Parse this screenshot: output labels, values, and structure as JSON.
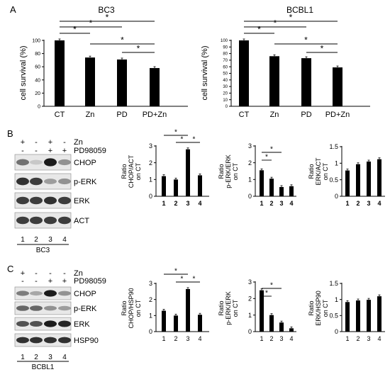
{
  "panels": {
    "A": "A",
    "B": "B",
    "C": "C"
  },
  "chart_data": [
    {
      "id": "a-bc3",
      "type": "bar",
      "title": "BC3",
      "ylabel": "cell survival (%)",
      "categories": [
        "CT",
        "Zn",
        "PD",
        "PD+Zn"
      ],
      "values": [
        100,
        74,
        71,
        58
      ],
      "ylim": [
        0,
        100
      ],
      "yticks": [
        "0",
        "20",
        "40",
        "60",
        "80",
        "100"
      ],
      "sig": [
        "*",
        "*",
        "*",
        "*",
        "*"
      ]
    },
    {
      "id": "a-bcbl1",
      "type": "bar",
      "title": "BCBL1",
      "ylabel": "cell survival (%)",
      "categories": [
        "CT",
        "Zn",
        "PD",
        "PD+Zn"
      ],
      "values": [
        100,
        76,
        73,
        59
      ],
      "ylim": [
        0,
        100
      ],
      "yticks": [
        "0",
        "10",
        "20",
        "30",
        "40",
        "50",
        "60",
        "70",
        "80",
        "90",
        "100"
      ],
      "sig": [
        "*",
        "*",
        "*",
        "*",
        "*"
      ]
    },
    {
      "id": "b-chop",
      "type": "bar",
      "ylabel": [
        "Ratio",
        "CHOP/ACT",
        "on CT"
      ],
      "categories": [
        "1",
        "2",
        "3",
        "4"
      ],
      "values": [
        1.2,
        1.0,
        2.8,
        1.25
      ],
      "ylim": [
        0,
        3
      ],
      "yticks": [
        "0",
        "1",
        "2",
        "3"
      ],
      "sig": [
        "*",
        "*",
        "*"
      ]
    },
    {
      "id": "b-perk",
      "type": "bar",
      "ylabel": [
        "Ratio",
        "p-ERK/ERK",
        "on CT"
      ],
      "categories": [
        "1",
        "2",
        "3",
        "4"
      ],
      "values": [
        1.55,
        1.05,
        0.55,
        0.6
      ],
      "ylim": [
        0,
        3
      ],
      "yticks": [
        "0",
        "1",
        "2",
        "3"
      ],
      "sig": [
        "*",
        "*"
      ]
    },
    {
      "id": "b-erk",
      "type": "bar",
      "ylabel": [
        "Ratio",
        "ERK/ACT",
        "on CT"
      ],
      "categories": [
        "1",
        "2",
        "3",
        "4"
      ],
      "values": [
        0.78,
        0.97,
        1.05,
        1.12
      ],
      "ylim": [
        0,
        1.5
      ],
      "yticks": [
        "0",
        "0.5",
        "1",
        "1.5"
      ],
      "sig": []
    },
    {
      "id": "c-chop",
      "type": "bar",
      "ylabel": [
        "Ratio",
        "CHOP/HSP90",
        "on CT"
      ],
      "categories": [
        "1",
        "2",
        "3",
        "4"
      ],
      "values": [
        1.3,
        1.0,
        2.65,
        1.05
      ],
      "ylim": [
        0,
        3
      ],
      "yticks": [
        "0",
        "1",
        "2",
        "3"
      ],
      "sig": [
        "*",
        "*",
        "*"
      ]
    },
    {
      "id": "c-perk",
      "type": "bar",
      "ylabel": [
        "Ratio",
        "p-ERK/ERK",
        "on CT"
      ],
      "categories": [
        "1",
        "2",
        "3",
        "4"
      ],
      "values": [
        2.5,
        1.0,
        0.55,
        0.2
      ],
      "ylim": [
        0,
        3
      ],
      "yticks": [
        "0",
        "1",
        "2",
        "3"
      ],
      "sig": [
        "*",
        "*"
      ]
    },
    {
      "id": "c-erk",
      "type": "bar",
      "ylabel": [
        "Ratio",
        "ERK/HSP90",
        "on CT"
      ],
      "categories": [
        "1",
        "2",
        "3",
        "4"
      ],
      "values": [
        0.92,
        0.97,
        0.99,
        1.1
      ],
      "ylim": [
        0,
        1.5
      ],
      "yticks": [
        "0",
        "0.5",
        "1",
        "1.5"
      ],
      "sig": []
    }
  ],
  "blots": [
    {
      "id": "b",
      "treatments": [
        {
          "label": "Zn",
          "signs": [
            "+",
            "-",
            "+",
            "-"
          ]
        },
        {
          "label": "PD98059",
          "signs": [
            "-",
            "-",
            "+",
            "+"
          ]
        }
      ],
      "bands": [
        "CHOP",
        "p-ERK",
        "ERK",
        "ACT"
      ],
      "intensity": [
        [
          0.55,
          0.15,
          0.95,
          0.4
        ],
        [
          0.85,
          0.8,
          0.35,
          0.4
        ],
        [
          0.8,
          0.8,
          0.85,
          0.8
        ],
        [
          0.8,
          0.8,
          0.8,
          0.8
        ]
      ],
      "lanes": [
        "1",
        "2",
        "3",
        "4"
      ],
      "cell_line": "BC3"
    },
    {
      "id": "c",
      "treatments": [
        {
          "label": "Zn",
          "signs": [
            "+",
            "-",
            "-",
            "-"
          ]
        },
        {
          "label": "PD98059",
          "signs": [
            "-",
            "-",
            "+",
            "+"
          ]
        }
      ],
      "bands": [
        "CHOP",
        "p-ERK",
        "ERK",
        "HSP90"
      ],
      "intensity": [
        [
          0.5,
          0.3,
          0.95,
          0.4
        ],
        [
          0.6,
          0.6,
          0.4,
          0.35
        ],
        [
          0.7,
          0.7,
          0.95,
          0.9
        ],
        [
          0.85,
          0.85,
          0.85,
          0.85
        ]
      ],
      "lanes": [
        "1",
        "2",
        "3",
        "4"
      ],
      "cell_line": "BCBL1"
    }
  ]
}
